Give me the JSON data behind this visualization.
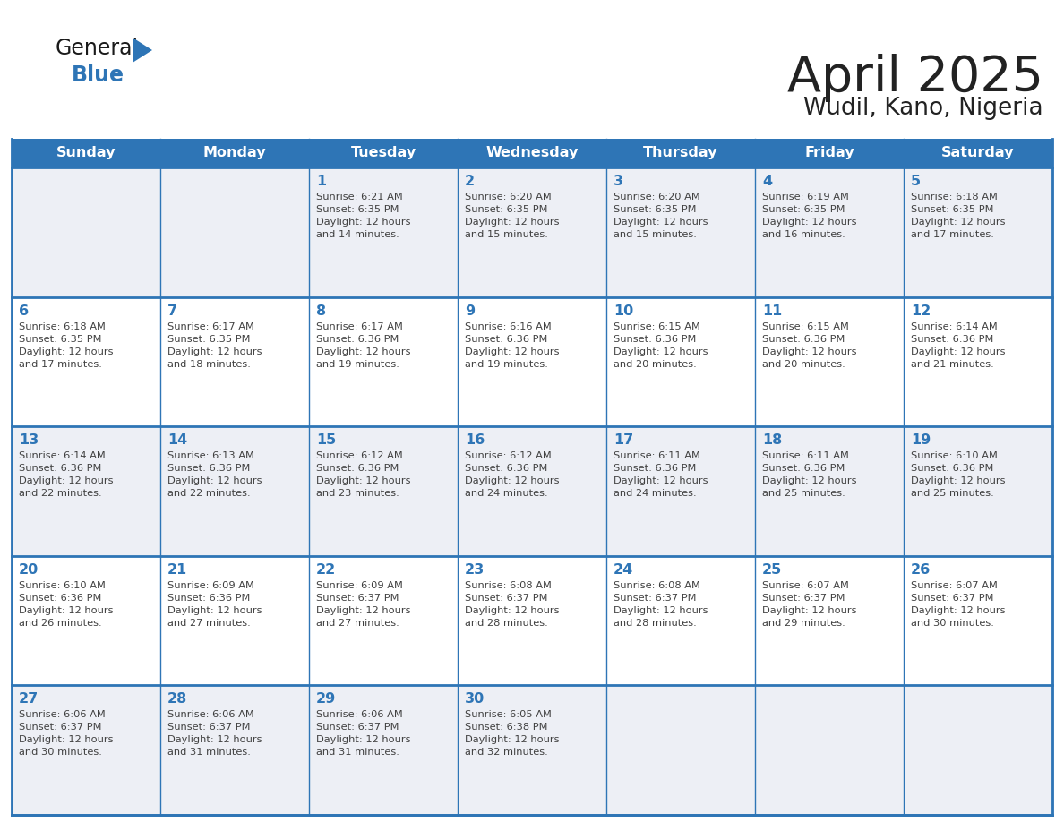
{
  "title": "April 2025",
  "subtitle": "Wudil, Kano, Nigeria",
  "header_bg_color": "#2E75B6",
  "header_text_color": "#FFFFFF",
  "day_names": [
    "Sunday",
    "Monday",
    "Tuesday",
    "Wednesday",
    "Thursday",
    "Friday",
    "Saturday"
  ],
  "cell_bg_color": "#FFFFFF",
  "cell_alt_bg_color": "#EDEFF5",
  "border_color": "#2E75B6",
  "day_num_color": "#2E75B6",
  "text_color": "#404040",
  "title_color": "#222222",
  "logo_general_color": "#1a1a1a",
  "logo_blue_color": "#2E75B6",
  "calendar_data": [
    [
      {
        "day": null,
        "info": null
      },
      {
        "day": null,
        "info": null
      },
      {
        "day": 1,
        "info": "Sunrise: 6:21 AM\nSunset: 6:35 PM\nDaylight: 12 hours\nand 14 minutes."
      },
      {
        "day": 2,
        "info": "Sunrise: 6:20 AM\nSunset: 6:35 PM\nDaylight: 12 hours\nand 15 minutes."
      },
      {
        "day": 3,
        "info": "Sunrise: 6:20 AM\nSunset: 6:35 PM\nDaylight: 12 hours\nand 15 minutes."
      },
      {
        "day": 4,
        "info": "Sunrise: 6:19 AM\nSunset: 6:35 PM\nDaylight: 12 hours\nand 16 minutes."
      },
      {
        "day": 5,
        "info": "Sunrise: 6:18 AM\nSunset: 6:35 PM\nDaylight: 12 hours\nand 17 minutes."
      }
    ],
    [
      {
        "day": 6,
        "info": "Sunrise: 6:18 AM\nSunset: 6:35 PM\nDaylight: 12 hours\nand 17 minutes."
      },
      {
        "day": 7,
        "info": "Sunrise: 6:17 AM\nSunset: 6:35 PM\nDaylight: 12 hours\nand 18 minutes."
      },
      {
        "day": 8,
        "info": "Sunrise: 6:17 AM\nSunset: 6:36 PM\nDaylight: 12 hours\nand 19 minutes."
      },
      {
        "day": 9,
        "info": "Sunrise: 6:16 AM\nSunset: 6:36 PM\nDaylight: 12 hours\nand 19 minutes."
      },
      {
        "day": 10,
        "info": "Sunrise: 6:15 AM\nSunset: 6:36 PM\nDaylight: 12 hours\nand 20 minutes."
      },
      {
        "day": 11,
        "info": "Sunrise: 6:15 AM\nSunset: 6:36 PM\nDaylight: 12 hours\nand 20 minutes."
      },
      {
        "day": 12,
        "info": "Sunrise: 6:14 AM\nSunset: 6:36 PM\nDaylight: 12 hours\nand 21 minutes."
      }
    ],
    [
      {
        "day": 13,
        "info": "Sunrise: 6:14 AM\nSunset: 6:36 PM\nDaylight: 12 hours\nand 22 minutes."
      },
      {
        "day": 14,
        "info": "Sunrise: 6:13 AM\nSunset: 6:36 PM\nDaylight: 12 hours\nand 22 minutes."
      },
      {
        "day": 15,
        "info": "Sunrise: 6:12 AM\nSunset: 6:36 PM\nDaylight: 12 hours\nand 23 minutes."
      },
      {
        "day": 16,
        "info": "Sunrise: 6:12 AM\nSunset: 6:36 PM\nDaylight: 12 hours\nand 24 minutes."
      },
      {
        "day": 17,
        "info": "Sunrise: 6:11 AM\nSunset: 6:36 PM\nDaylight: 12 hours\nand 24 minutes."
      },
      {
        "day": 18,
        "info": "Sunrise: 6:11 AM\nSunset: 6:36 PM\nDaylight: 12 hours\nand 25 minutes."
      },
      {
        "day": 19,
        "info": "Sunrise: 6:10 AM\nSunset: 6:36 PM\nDaylight: 12 hours\nand 25 minutes."
      }
    ],
    [
      {
        "day": 20,
        "info": "Sunrise: 6:10 AM\nSunset: 6:36 PM\nDaylight: 12 hours\nand 26 minutes."
      },
      {
        "day": 21,
        "info": "Sunrise: 6:09 AM\nSunset: 6:36 PM\nDaylight: 12 hours\nand 27 minutes."
      },
      {
        "day": 22,
        "info": "Sunrise: 6:09 AM\nSunset: 6:37 PM\nDaylight: 12 hours\nand 27 minutes."
      },
      {
        "day": 23,
        "info": "Sunrise: 6:08 AM\nSunset: 6:37 PM\nDaylight: 12 hours\nand 28 minutes."
      },
      {
        "day": 24,
        "info": "Sunrise: 6:08 AM\nSunset: 6:37 PM\nDaylight: 12 hours\nand 28 minutes."
      },
      {
        "day": 25,
        "info": "Sunrise: 6:07 AM\nSunset: 6:37 PM\nDaylight: 12 hours\nand 29 minutes."
      },
      {
        "day": 26,
        "info": "Sunrise: 6:07 AM\nSunset: 6:37 PM\nDaylight: 12 hours\nand 30 minutes."
      }
    ],
    [
      {
        "day": 27,
        "info": "Sunrise: 6:06 AM\nSunset: 6:37 PM\nDaylight: 12 hours\nand 30 minutes."
      },
      {
        "day": 28,
        "info": "Sunrise: 6:06 AM\nSunset: 6:37 PM\nDaylight: 12 hours\nand 31 minutes."
      },
      {
        "day": 29,
        "info": "Sunrise: 6:06 AM\nSunset: 6:37 PM\nDaylight: 12 hours\nand 31 minutes."
      },
      {
        "day": 30,
        "info": "Sunrise: 6:05 AM\nSunset: 6:38 PM\nDaylight: 12 hours\nand 32 minutes."
      },
      {
        "day": null,
        "info": null
      },
      {
        "day": null,
        "info": null
      },
      {
        "day": null,
        "info": null
      }
    ]
  ],
  "figsize": [
    11.88,
    9.18
  ],
  "dpi": 100
}
